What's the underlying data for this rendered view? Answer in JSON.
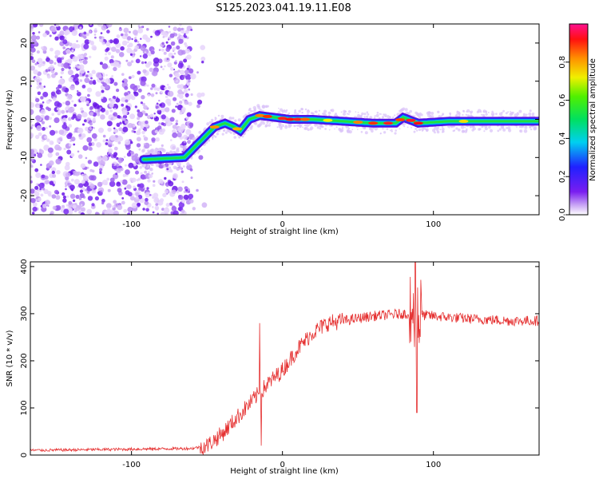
{
  "title": "S125.2023.041.19.11.E08",
  "chart_data": [
    {
      "type": "heatmap",
      "name": "spectrogram",
      "xlabel": "Height of straight line (km)",
      "ylabel": "Frequency (Hz)",
      "xlim": [
        -167,
        170
      ],
      "ylim": [
        -25,
        25
      ],
      "xticks": [
        -100,
        0,
        100
      ],
      "yticks": [
        -20,
        -10,
        0,
        10,
        20
      ],
      "colorbar": {
        "label": "Normalized spectral amplitude",
        "range": [
          0.0,
          1.0
        ],
        "ticks": [
          "0.0",
          "0.2",
          "0.4",
          "0.6",
          "0.8"
        ],
        "colormap": "rainbow (violet-blue-cyan-green-yellow-orange-red-magenta)"
      },
      "ridge_frequency": {
        "x": [
          -90,
          -65,
          -55,
          -45,
          -38,
          -32,
          -28,
          -22,
          -15,
          -5,
          5,
          20,
          40,
          60,
          75,
          80,
          90,
          110,
          140,
          170
        ],
        "y": [
          -10.5,
          -10,
          -6,
          -2,
          -1,
          -2,
          -3,
          0,
          1,
          0.5,
          0,
          0,
          -0.5,
          -1,
          -1,
          0.5,
          -1,
          -0.5,
          -0.5,
          -0.5
        ]
      },
      "noise_region_x": [
        -167,
        -60
      ]
    },
    {
      "type": "line",
      "name": "snr",
      "color": "#e53030",
      "xlabel": "Height of straight line (km)",
      "ylabel": "SNR (10 * v/v)",
      "xlim": [
        -167,
        170
      ],
      "ylim": [
        0,
        410
      ],
      "xticks": [
        -100,
        0,
        100
      ],
      "yticks": [
        0,
        100,
        200,
        300,
        400
      ],
      "trend": {
        "x": [
          -167,
          -60,
          -50,
          -40,
          -30,
          -20,
          -10,
          0,
          10,
          20,
          30,
          40,
          60,
          80,
          100,
          120,
          150,
          170
        ],
        "y": [
          10,
          14,
          20,
          45,
          80,
          115,
          150,
          180,
          225,
          260,
          280,
          285,
          295,
          300,
          295,
          290,
          285,
          285
        ]
      },
      "spikes": [
        {
          "x": -15,
          "y": 280
        },
        {
          "x": -14,
          "y": 20
        },
        {
          "x": 88,
          "y": 410
        },
        {
          "x": 89,
          "y": 90
        }
      ]
    }
  ]
}
